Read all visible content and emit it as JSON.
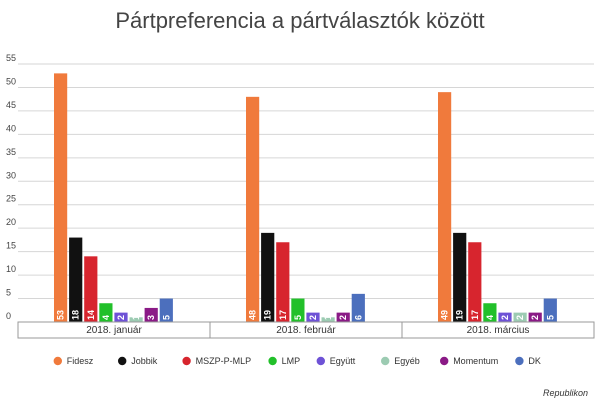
{
  "chart_data": {
    "type": "bar",
    "title": "Pártpreferencia a pártválasztók között",
    "xlabel": "",
    "ylabel": "",
    "ylim": [
      0,
      55
    ],
    "yticks": [
      0,
      5,
      10,
      15,
      20,
      25,
      30,
      35,
      40,
      45,
      50,
      55
    ],
    "grid": true,
    "legend_position": "bottom",
    "categories": [
      "2018. január",
      "2018. február",
      "2018. március"
    ],
    "series": [
      {
        "name": "Fidesz",
        "color": "#F07A3C",
        "values": [
          53,
          48,
          49
        ]
      },
      {
        "name": "Jobbik",
        "color": "#111111",
        "values": [
          18,
          19,
          19
        ]
      },
      {
        "name": "MSZP-P-MLP",
        "color": "#D7252E",
        "values": [
          14,
          17,
          17
        ]
      },
      {
        "name": "LMP",
        "color": "#22C02A",
        "values": [
          4,
          5,
          4
        ]
      },
      {
        "name": "Együtt",
        "color": "#6E52D6",
        "values": [
          2,
          2,
          2
        ]
      },
      {
        "name": "Egyéb",
        "color": "#9CCBB2",
        "values": [
          1,
          1,
          2
        ]
      },
      {
        "name": "Momentum",
        "color": "#8A1A86",
        "values": [
          3,
          2,
          2
        ]
      },
      {
        "name": "DK",
        "color": "#4C6FBD",
        "values": [
          5,
          6,
          5
        ]
      }
    ]
  },
  "source": "Republikon"
}
